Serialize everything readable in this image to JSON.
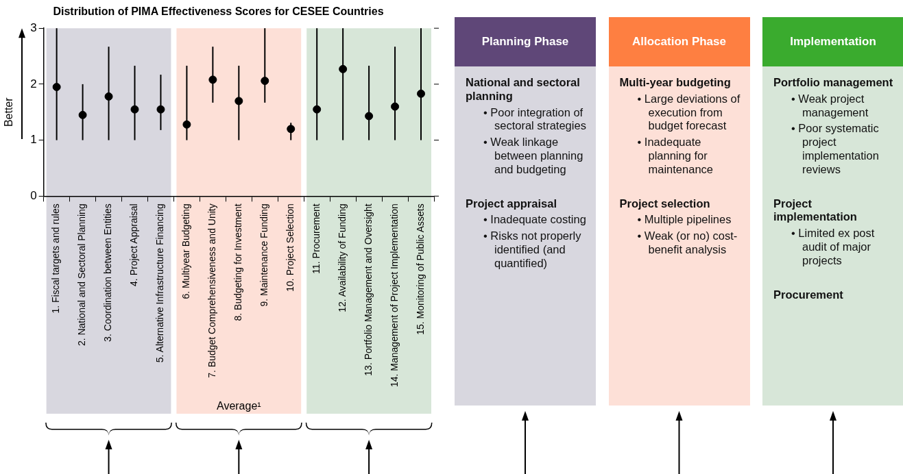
{
  "chart_data": [
    {
      "type": "scatter",
      "title": "Distribution of PIMA Effectiveness Scores for CESEE Countries",
      "ylabel": "Better",
      "categories": [
        "1. Fiscal targets and rules",
        "2. National and Sectoral Planning",
        "3. Coordination between Entities",
        "4. Project Appraisal",
        "5. Alternative Infrastructure Financing",
        "6. Multiyear Budgeting",
        "7. Budget Comprehensiveness and Unity",
        "8. Budgeting for Investment",
        "9. Maintenance Funding",
        "10. Project Selection",
        "11. Procurement",
        "12. Availability of Funding",
        "13. Portfolio Management and Oversight",
        "14. Management of Project Implementation",
        "15. Monitoring of Public Assets"
      ],
      "series": [
        {
          "color": "#000000",
          "values": [
            1.95,
            1.45,
            1.78,
            1.55,
            1.55,
            1.28,
            2.08,
            1.7,
            2.06,
            1.2,
            1.55,
            2.27,
            1.43,
            1.6,
            1.83
          ],
          "errors": [
            [
              1,
              3
            ],
            [
              1,
              2
            ],
            [
              1,
              2.67
            ],
            [
              1,
              2.33
            ],
            [
              1.18,
              2.17
            ],
            [
              1,
              2.33
            ],
            [
              1.67,
              2.67
            ],
            [
              1,
              2.33
            ],
            [
              1.67,
              3
            ],
            [
              1,
              1.31
            ],
            [
              1,
              3
            ],
            [
              1,
              3
            ],
            [
              1,
              2.33
            ],
            [
              1,
              2.67
            ],
            [
              1,
              3
            ]
          ]
        }
      ],
      "ylim": [
        0,
        3
      ],
      "yticks": [
        0,
        1,
        2,
        3
      ],
      "grid": false,
      "legend": false,
      "marker": "circle",
      "bands": [
        {
          "axis": "x",
          "from": "1. Fiscal targets and rules",
          "to": "5. Alternative Infrastructure Financing",
          "color": "#d8d7df"
        },
        {
          "axis": "x",
          "from": "6. Multiyear Budgeting",
          "to": "10. Project Selection",
          "color": "#fde0d7"
        },
        {
          "axis": "x",
          "from": "11. Procurement",
          "to": "15. Monitoring of Public Assets",
          "color": "#d7e6d8"
        }
      ],
      "annotations": [
        "Average¹"
      ]
    },
    {
      "type": "other",
      "title": "Planning Phase",
      "colors": [
        "#5f4778",
        "#d8d7df"
      ],
      "annotations": [
        "National and sectoral planning",
        "• Poor integration of sectoral strategies",
        "• Weak linkage between planning and budgeting",
        "Project appraisal",
        "• Inadequate costing",
        "• Risks not properly identified (and quantified)"
      ]
    },
    {
      "type": "other",
      "title": "Allocation Phase",
      "colors": [
        "#fe7f41",
        "#fde0d7"
      ],
      "annotations": [
        "Multi-year budgeting",
        "• Large deviations of execution from budget forecast",
        "• Inadequate planning for maintenance",
        "Project selection",
        "• Multiple pipelines",
        "• Weak (or no) cost-benefit analysis"
      ]
    },
    {
      "type": "other",
      "title": "Implementation",
      "colors": [
        "#3aab2e",
        "#d7e6d8"
      ],
      "annotations": [
        "Portfolio management",
        "• Weak project management",
        "• Poor systematic project implementation reviews",
        "Project implementation",
        "• Limited ex post audit of major projects",
        "Procurement"
      ]
    }
  ]
}
